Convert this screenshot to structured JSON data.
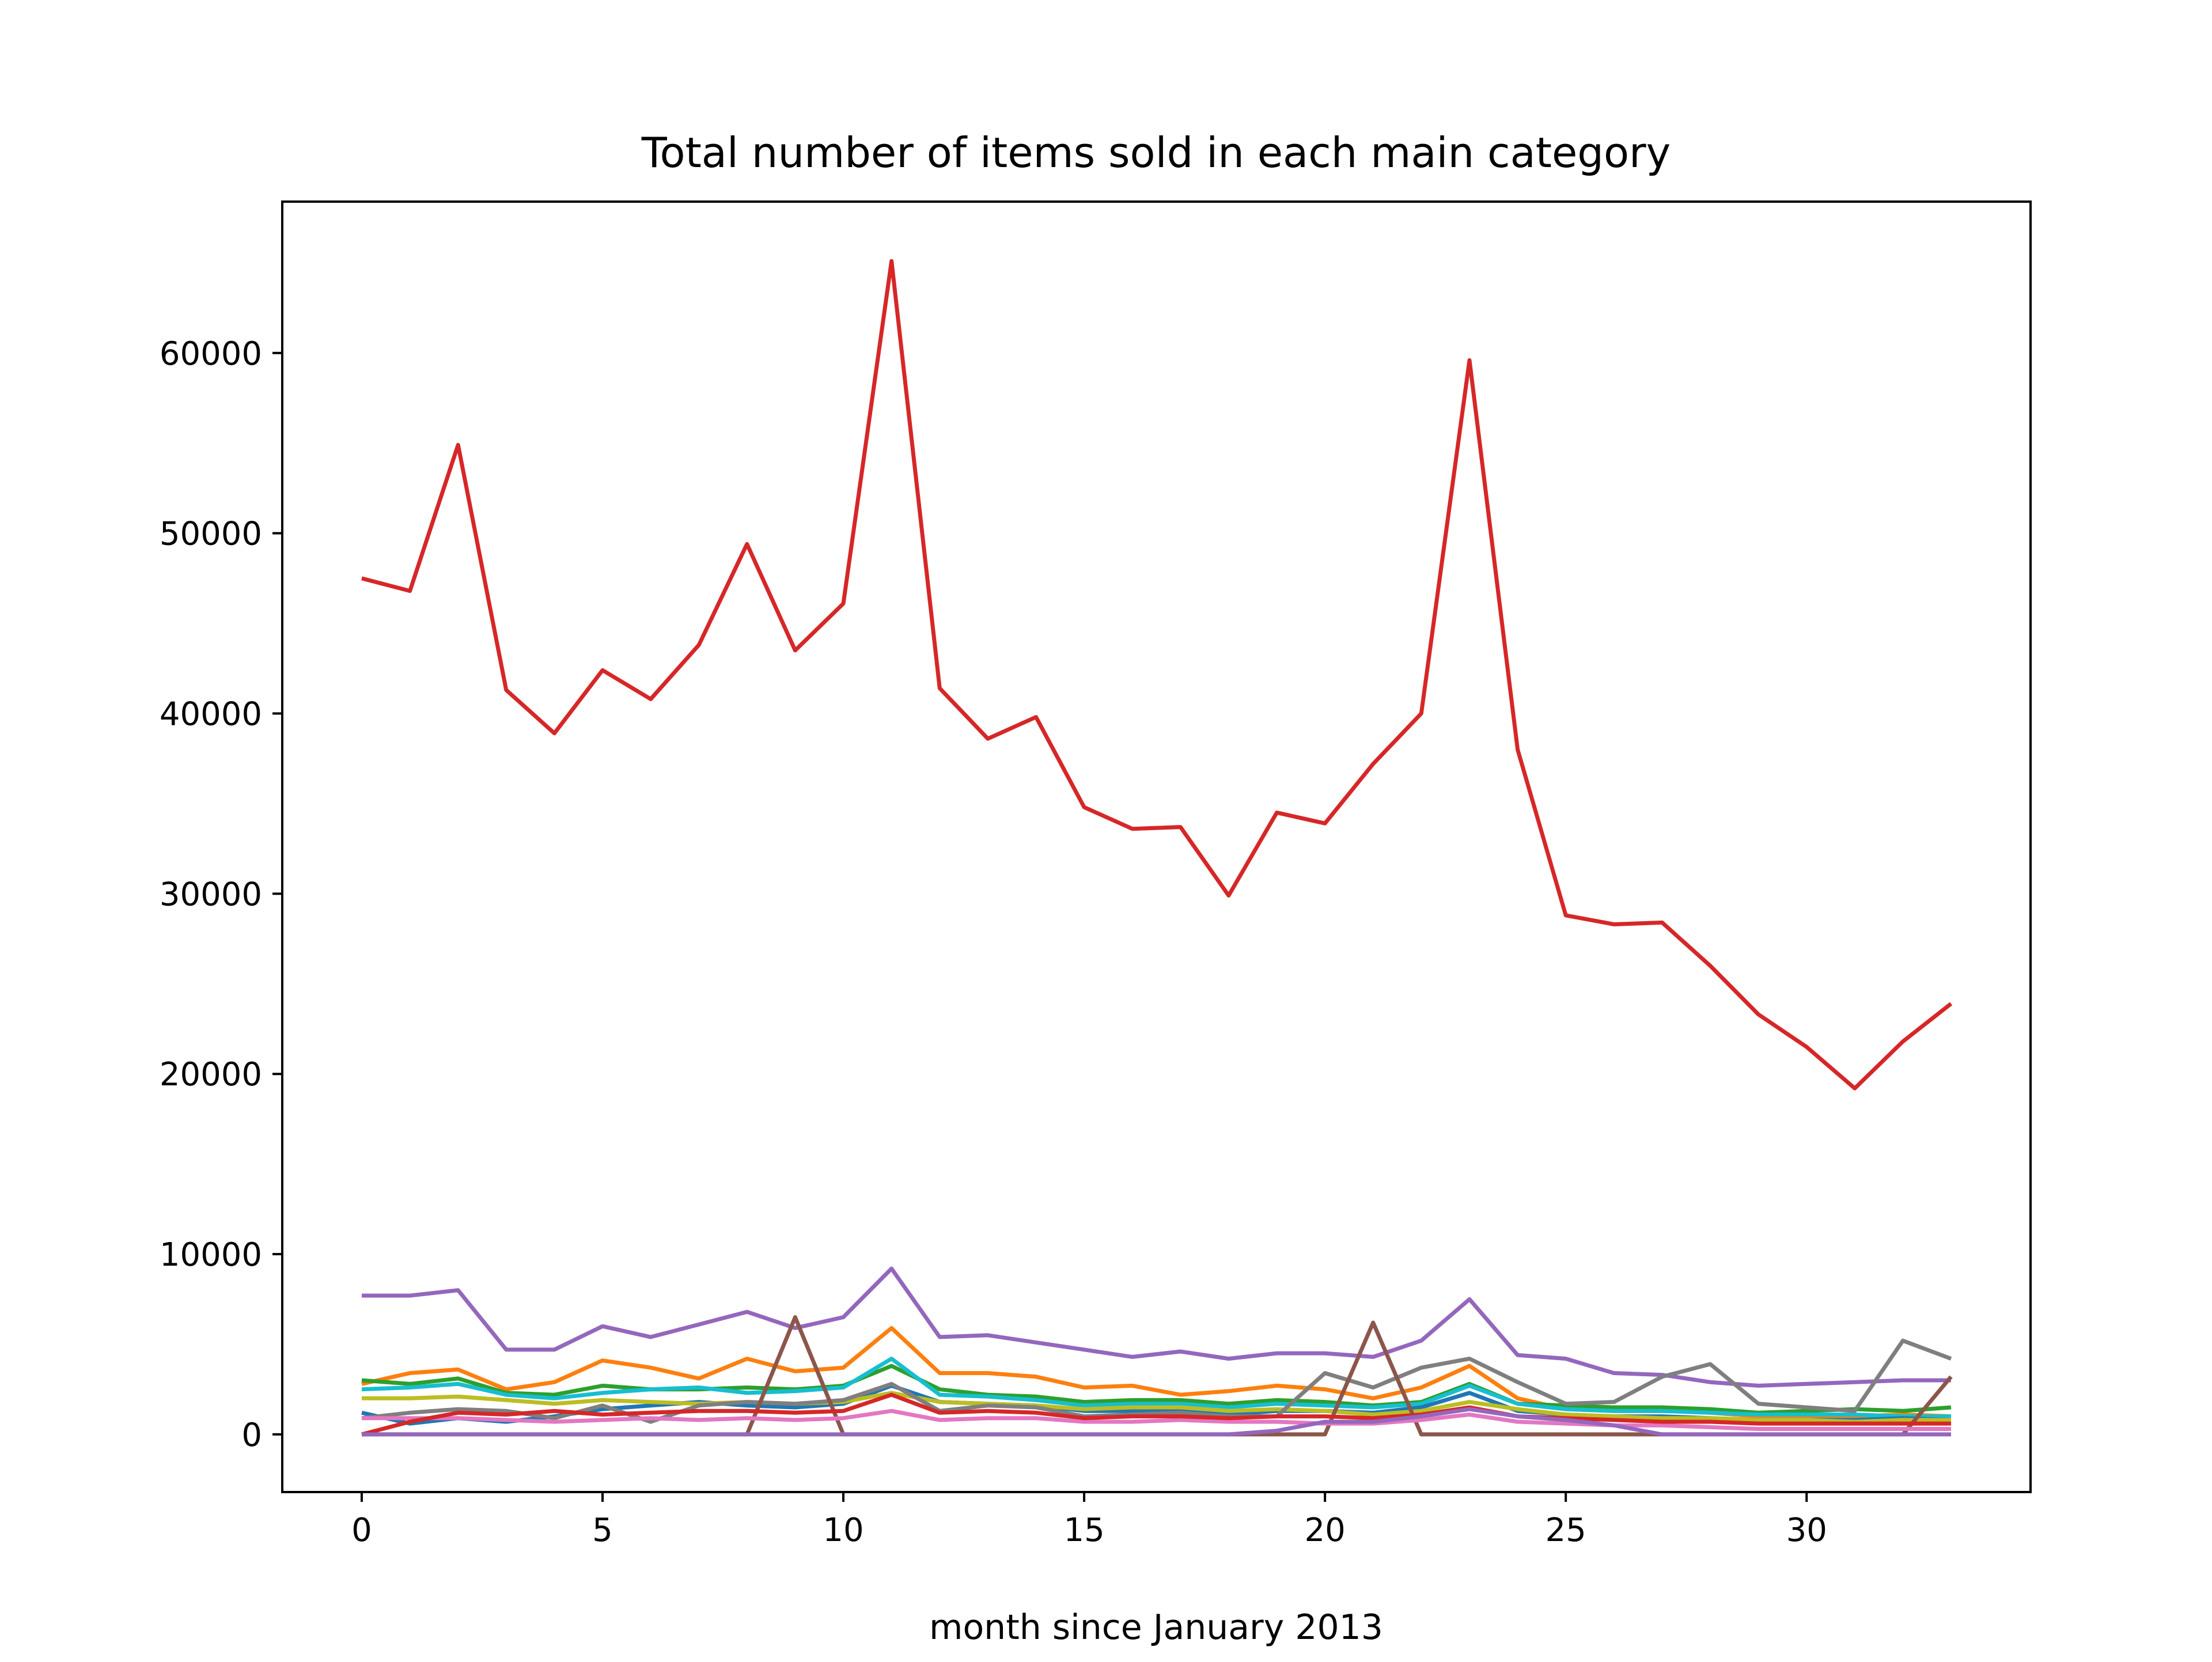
{
  "chart_data": {
    "type": "line",
    "title": "Total number of items sold in each main category",
    "xlabel": "month since January 2013",
    "ylabel": "",
    "xlim": [
      -1.65,
      34.65
    ],
    "ylim": [
      -3200,
      68400
    ],
    "grid": false,
    "legend": "none",
    "xticks": [
      0,
      5,
      10,
      15,
      20,
      25,
      30
    ],
    "yticks": [
      0,
      10000,
      20000,
      30000,
      40000,
      50000,
      60000
    ],
    "x": [
      0,
      1,
      2,
      3,
      4,
      5,
      6,
      7,
      8,
      9,
      10,
      11,
      12,
      13,
      14,
      15,
      16,
      17,
      18,
      19,
      20,
      21,
      22,
      23,
      24,
      25,
      26,
      27,
      28,
      29,
      30,
      31,
      32,
      33
    ],
    "series": [
      {
        "color": "#d62728",
        "values": [
          47500,
          46800,
          54900,
          41300,
          38900,
          42400,
          40800,
          43800,
          49400,
          43500,
          46100,
          65100,
          41400,
          38600,
          39800,
          34800,
          33600,
          33700,
          29900,
          34500,
          33900,
          37200,
          40000,
          59600,
          38000,
          28800,
          28300,
          28400,
          26000,
          23300,
          21500,
          19200,
          21800,
          23900
        ]
      },
      {
        "color": "#9467bd",
        "values": [
          7700,
          7700,
          8000,
          4700,
          4700,
          6000,
          5400,
          6100,
          6800,
          5900,
          6500,
          9200,
          5400,
          5500,
          5100,
          4700,
          4300,
          4600,
          4200,
          4500,
          4500,
          4300,
          5200,
          7500,
          4400,
          4200,
          3400,
          3300,
          2900,
          2700,
          2800,
          2900,
          3000,
          3000
        ]
      },
      {
        "color": "#ff7f0e",
        "values": [
          2800,
          3400,
          3600,
          2500,
          2900,
          4100,
          3700,
          3100,
          4200,
          3500,
          3700,
          5900,
          3400,
          3400,
          3200,
          2600,
          2700,
          2200,
          2400,
          2700,
          2500,
          2000,
          2600,
          3800,
          2000,
          1400,
          1300,
          1300,
          1200,
          1000,
          1000,
          1000,
          1100,
          1000
        ]
      },
      {
        "color": "#2ca02c",
        "values": [
          3000,
          2800,
          3100,
          2300,
          2200,
          2700,
          2500,
          2500,
          2600,
          2500,
          2700,
          3800,
          2500,
          2200,
          2100,
          1800,
          1900,
          1900,
          1700,
          1900,
          1800,
          1600,
          1800,
          2800,
          1700,
          1600,
          1500,
          1500,
          1400,
          1200,
          1300,
          1400,
          1300,
          1500
        ]
      },
      {
        "color": "#17becf",
        "values": [
          2500,
          2600,
          2800,
          2200,
          2000,
          2300,
          2500,
          2600,
          2300,
          2400,
          2600,
          4200,
          2200,
          2100,
          1900,
          1600,
          1700,
          1700,
          1500,
          1700,
          1600,
          1500,
          1700,
          2700,
          1700,
          1400,
          1300,
          1300,
          1200,
          1100,
          1100,
          1100,
          1000,
          1000
        ]
      },
      {
        "color": "#1f77b4",
        "values": [
          1200,
          600,
          900,
          700,
          1000,
          1400,
          1600,
          1800,
          1600,
          1500,
          1700,
          2700,
          1800,
          1700,
          1600,
          1300,
          1300,
          1300,
          1100,
          1300,
          1300,
          1200,
          1500,
          2300,
          1300,
          1100,
          1000,
          1000,
          900,
          800,
          800,
          800,
          900,
          800
        ]
      },
      {
        "color": "#bcbd22",
        "values": [
          2000,
          2000,
          2100,
          1900,
          1700,
          1900,
          1800,
          1700,
          1800,
          1700,
          1800,
          2300,
          1800,
          1700,
          1600,
          1400,
          1500,
          1500,
          1300,
          1400,
          1300,
          1100,
          1300,
          1800,
          1400,
          1100,
          1000,
          900,
          900,
          800,
          800,
          700,
          800,
          800
        ]
      },
      {
        "color": "#7f7f7f",
        "values": [
          900,
          1200,
          1400,
          1300,
          900,
          1600,
          700,
          1600,
          1800,
          1700,
          1900,
          2800,
          1300,
          1600,
          1500,
          1000,
          1100,
          1200,
          1000,
          1000,
          3400,
          2600,
          3700,
          4200,
          2900,
          1700,
          1800,
          3200,
          3900,
          1700,
          1500,
          1300,
          5200,
          4200
        ]
      },
      {
        "color": "#8c564b",
        "values": [
          0,
          0,
          0,
          0,
          0,
          0,
          0,
          0,
          0,
          6500,
          0,
          0,
          0,
          0,
          0,
          0,
          0,
          0,
          0,
          0,
          0,
          6200,
          0,
          0,
          0,
          0,
          0,
          0,
          0,
          0,
          0,
          0,
          0,
          3200
        ]
      },
      {
        "color": "#e377c2",
        "values": [
          900,
          900,
          900,
          800,
          700,
          800,
          900,
          800,
          900,
          800,
          900,
          1300,
          800,
          900,
          900,
          700,
          700,
          800,
          700,
          700,
          600,
          600,
          800,
          1100,
          700,
          600,
          500,
          500,
          400,
          300,
          300,
          300,
          300,
          300
        ]
      },
      {
        "color": "#d62728",
        "values": [
          0,
          700,
          1200,
          1100,
          1300,
          1100,
          1200,
          1300,
          1300,
          1200,
          1300,
          2200,
          1200,
          1300,
          1200,
          900,
          1000,
          1000,
          900,
          1000,
          1000,
          900,
          1100,
          1500,
          1000,
          900,
          800,
          700,
          700,
          600,
          600,
          600,
          600,
          600
        ]
      },
      {
        "color": "#9467bd",
        "values": [
          0,
          0,
          0,
          0,
          0,
          0,
          0,
          0,
          0,
          0,
          0,
          0,
          0,
          0,
          0,
          0,
          0,
          0,
          0,
          200,
          700,
          700,
          1000,
          1400,
          1000,
          800,
          500,
          0,
          0,
          0,
          0,
          0,
          0,
          0
        ]
      }
    ]
  }
}
